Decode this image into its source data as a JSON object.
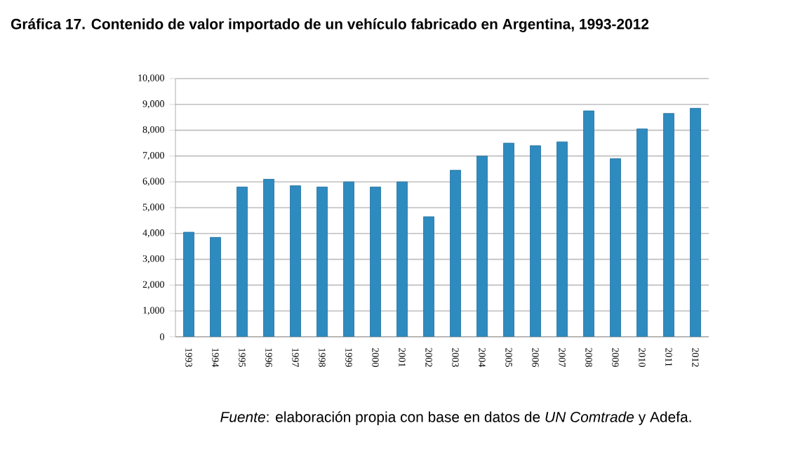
{
  "chart_data": {
    "type": "bar",
    "title": "**Gráfica 17. Contenido de valor importado de un vehículo fabricado en Argentina, 1993-2012**",
    "categories": [
      "1993",
      "1994",
      "1995",
      "1996",
      "1997",
      "1998",
      "1999",
      "2000",
      "2001",
      "2002",
      "2003",
      "2004",
      "2005",
      "2006",
      "2007",
      "2008",
      "2009",
      "2010",
      "2011",
      "2012"
    ],
    "values": [
      4050,
      3850,
      5800,
      6100,
      5850,
      5800,
      6000,
      5800,
      6000,
      4650,
      6450,
      7000,
      7500,
      7400,
      7550,
      8750,
      6900,
      8050,
      8650,
      8850
    ],
    "color": "#2e8bc0",
    "ylim": [
      0,
      10000
    ],
    "yticks": [
      0,
      {
        "value": 1000,
        "label": "1,000"
      },
      {
        "value": 2000,
        "label": "2,000"
      },
      {
        "value": 3000,
        "label": "3,000"
      },
      {
        "value": 4000,
        "label": "4,000"
      },
      {
        "value": 5000,
        "label": "5,000"
      },
      {
        "value": 6000,
        "label": "6,000"
      },
      {
        "value": 7000,
        "label": "7,000"
      },
      {
        "value": 8000,
        "label": "8,000"
      },
      {
        "value": 9000,
        "label": "9,000"
      },
      {
        "value": 10000,
        "label": "10,000"
      }
    ],
    "grid": "y",
    "annotations": [
      "*Fuente*: elaboración propia con base en datos de *UN Comtrade* y Adefa."
    ]
  }
}
